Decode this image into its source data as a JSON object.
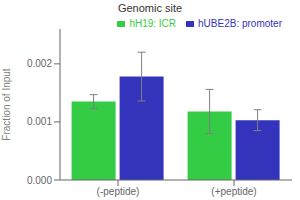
{
  "chart_data": {
    "type": "bar",
    "title": "Genomic site",
    "ylabel": "Fraction of Input",
    "categories": [
      "(-peptide)",
      "(+peptide)"
    ],
    "series": [
      {
        "name": "hH19: ICR",
        "color": "#33cc44",
        "values": [
          0.00135,
          0.00118
        ],
        "errors": [
          0.00012,
          0.00038
        ]
      },
      {
        "name": "hUBE2B: promoter",
        "color": "#3333bb",
        "values": [
          0.00178,
          0.00103
        ],
        "errors": [
          0.00042,
          0.00018
        ]
      }
    ],
    "ylim": [
      0,
      0.0026
    ],
    "yticks": [
      {
        "value": 0,
        "label": "0.000"
      },
      {
        "value": 0.001,
        "label": "0.001"
      },
      {
        "value": 0.002,
        "label": "0.002"
      }
    ],
    "legend": "upper right"
  }
}
